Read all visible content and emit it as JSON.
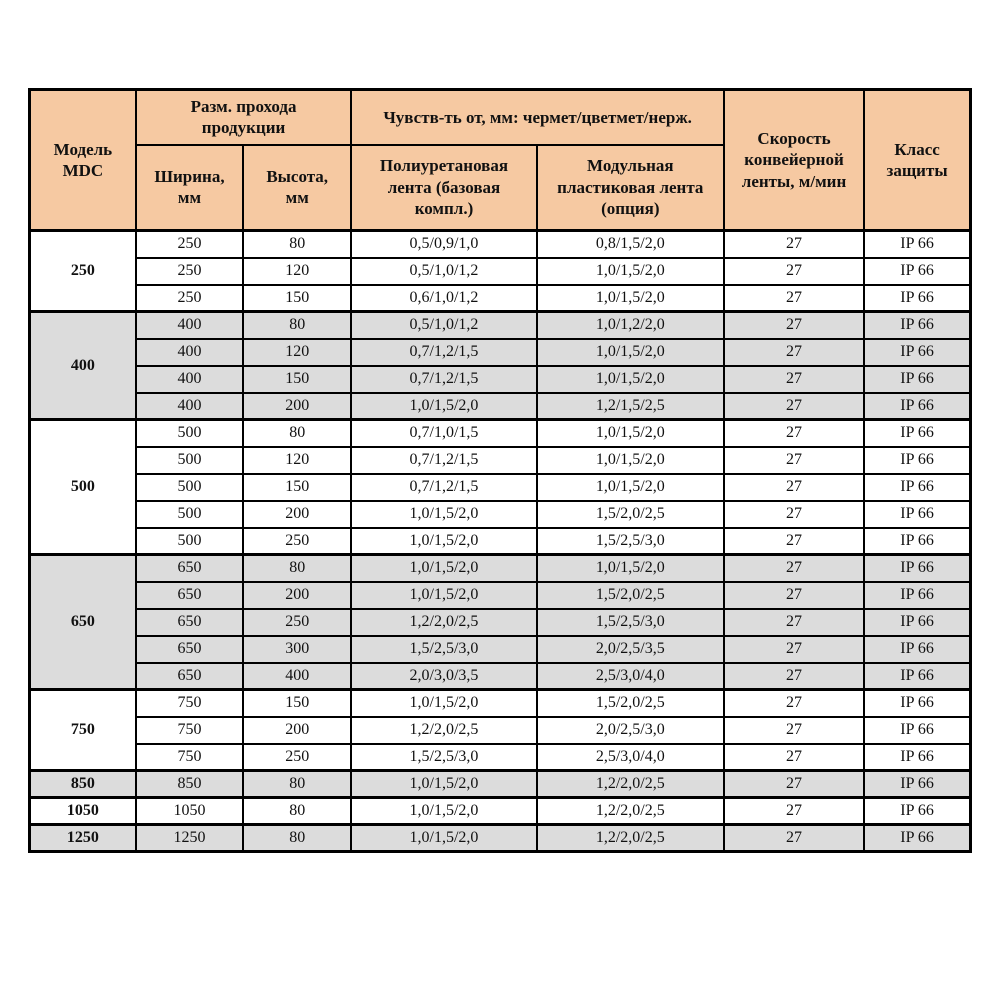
{
  "colors": {
    "header_bg": "#F6C9A2",
    "shade_bg": "#DCDCDC",
    "border": "#000000",
    "page_bg": "#FFFFFF"
  },
  "table": {
    "header": {
      "model": "Модель\nMDC",
      "pass_size": "Разм. прохода\nпродукции",
      "width": "Ширина,\nмм",
      "height": "Высота,\nмм",
      "sensitivity": "Чувств-ть от, мм: чермет/цветмет/нерж.",
      "belt_pu": "Полиуретановая\nлента (базовая\nкомпл.)",
      "belt_modular": "Модульная\nпластиковая лента\n(опция)",
      "speed": "Скорость\nконвейерной\nленты, м/мин",
      "protection": "Класс\nзащиты"
    },
    "groups": [
      {
        "model": "250",
        "shaded": false,
        "rows": [
          {
            "width": "250",
            "height": "80",
            "pu": "0,5/0,9/1,0",
            "modular": "0,8/1,5/2,0",
            "speed": "27",
            "protection": "IP 66"
          },
          {
            "width": "250",
            "height": "120",
            "pu": "0,5/1,0/1,2",
            "modular": "1,0/1,5/2,0",
            "speed": "27",
            "protection": "IP 66"
          },
          {
            "width": "250",
            "height": "150",
            "pu": "0,6/1,0/1,2",
            "modular": "1,0/1,5/2,0",
            "speed": "27",
            "protection": "IP 66"
          }
        ]
      },
      {
        "model": "400",
        "shaded": true,
        "rows": [
          {
            "width": "400",
            "height": "80",
            "pu": "0,5/1,0/1,2",
            "modular": "1,0/1,2/2,0",
            "speed": "27",
            "protection": "IP 66"
          },
          {
            "width": "400",
            "height": "120",
            "pu": "0,7/1,2/1,5",
            "modular": "1,0/1,5/2,0",
            "speed": "27",
            "protection": "IP 66"
          },
          {
            "width": "400",
            "height": "150",
            "pu": "0,7/1,2/1,5",
            "modular": "1,0/1,5/2,0",
            "speed": "27",
            "protection": "IP 66"
          },
          {
            "width": "400",
            "height": "200",
            "pu": "1,0/1,5/2,0",
            "modular": "1,2/1,5/2,5",
            "speed": "27",
            "protection": "IP 66"
          }
        ]
      },
      {
        "model": "500",
        "shaded": false,
        "rows": [
          {
            "width": "500",
            "height": "80",
            "pu": "0,7/1,0/1,5",
            "modular": "1,0/1,5/2,0",
            "speed": "27",
            "protection": "IP 66"
          },
          {
            "width": "500",
            "height": "120",
            "pu": "0,7/1,2/1,5",
            "modular": "1,0/1,5/2,0",
            "speed": "27",
            "protection": "IP 66"
          },
          {
            "width": "500",
            "height": "150",
            "pu": "0,7/1,2/1,5",
            "modular": "1,0/1,5/2,0",
            "speed": "27",
            "protection": "IP 66"
          },
          {
            "width": "500",
            "height": "200",
            "pu": "1,0/1,5/2,0",
            "modular": "1,5/2,0/2,5",
            "speed": "27",
            "protection": "IP 66"
          },
          {
            "width": "500",
            "height": "250",
            "pu": "1,0/1,5/2,0",
            "modular": "1,5/2,5/3,0",
            "speed": "27",
            "protection": "IP 66"
          }
        ]
      },
      {
        "model": "650",
        "shaded": true,
        "rows": [
          {
            "width": "650",
            "height": "80",
            "pu": "1,0/1,5/2,0",
            "modular": "1,0/1,5/2,0",
            "speed": "27",
            "protection": "IP 66"
          },
          {
            "width": "650",
            "height": "200",
            "pu": "1,0/1,5/2,0",
            "modular": "1,5/2,0/2,5",
            "speed": "27",
            "protection": "IP 66"
          },
          {
            "width": "650",
            "height": "250",
            "pu": "1,2/2,0/2,5",
            "modular": "1,5/2,5/3,0",
            "speed": "27",
            "protection": "IP 66"
          },
          {
            "width": "650",
            "height": "300",
            "pu": "1,5/2,5/3,0",
            "modular": "2,0/2,5/3,5",
            "speed": "27",
            "protection": "IP 66"
          },
          {
            "width": "650",
            "height": "400",
            "pu": "2,0/3,0/3,5",
            "modular": "2,5/3,0/4,0",
            "speed": "27",
            "protection": "IP 66"
          }
        ]
      },
      {
        "model": "750",
        "shaded": false,
        "rows": [
          {
            "width": "750",
            "height": "150",
            "pu": "1,0/1,5/2,0",
            "modular": "1,5/2,0/2,5",
            "speed": "27",
            "protection": "IP 66"
          },
          {
            "width": "750",
            "height": "200",
            "pu": "1,2/2,0/2,5",
            "modular": "2,0/2,5/3,0",
            "speed": "27",
            "protection": "IP 66"
          },
          {
            "width": "750",
            "height": "250",
            "pu": "1,5/2,5/3,0",
            "modular": "2,5/3,0/4,0",
            "speed": "27",
            "protection": "IP 66"
          }
        ]
      },
      {
        "model": "850",
        "shaded": true,
        "rows": [
          {
            "width": "850",
            "height": "80",
            "pu": "1,0/1,5/2,0",
            "modular": "1,2/2,0/2,5",
            "speed": "27",
            "protection": "IP 66"
          }
        ]
      },
      {
        "model": "1050",
        "shaded": false,
        "rows": [
          {
            "width": "1050",
            "height": "80",
            "pu": "1,0/1,5/2,0",
            "modular": "1,2/2,0/2,5",
            "speed": "27",
            "protection": "IP 66"
          }
        ]
      },
      {
        "model": "1250",
        "shaded": true,
        "rows": [
          {
            "width": "1250",
            "height": "80",
            "pu": "1,0/1,5/2,0",
            "modular": "1,2/2,0/2,5",
            "speed": "27",
            "protection": "IP 66"
          }
        ]
      }
    ]
  }
}
